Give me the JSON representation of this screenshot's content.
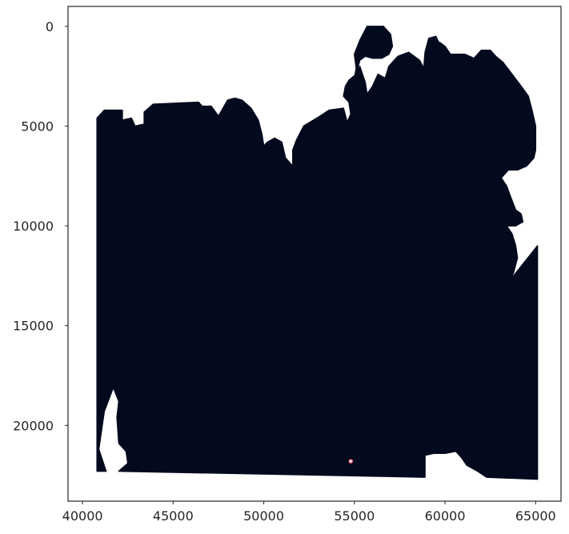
{
  "chart_data": {
    "type": "scatter",
    "title": "",
    "xlabel": "",
    "ylabel": "",
    "xlim": [
      39200,
      66400
    ],
    "ylim": [
      -1000,
      23800
    ],
    "y_inverted": true,
    "grid": false,
    "legend": "none",
    "xticks": [
      {
        "value": 40000,
        "label": "40000"
      },
      {
        "value": 45000,
        "label": "45000"
      },
      {
        "value": 50000,
        "label": "50000"
      },
      {
        "value": 55000,
        "label": "55000"
      },
      {
        "value": 60000,
        "label": "60000"
      },
      {
        "value": 65000,
        "label": "65000"
      }
    ],
    "yticks": [
      {
        "value": 0,
        "label": "0"
      },
      {
        "value": 5000,
        "label": "5000"
      },
      {
        "value": 10000,
        "label": "10000"
      },
      {
        "value": 15000,
        "label": "15000"
      },
      {
        "value": 20000,
        "label": "20000"
      }
    ],
    "series": [
      {
        "kind": "tissue-region",
        "color": "#040a1e",
        "outline": [
          [
            40800,
            22300
          ],
          [
            40800,
            4600
          ],
          [
            41200,
            4200
          ],
          [
            42200,
            4200
          ],
          [
            42200,
            4700
          ],
          [
            42700,
            4600
          ],
          [
            42900,
            5000
          ],
          [
            43400,
            4900
          ],
          [
            43400,
            4300
          ],
          [
            43900,
            3900
          ],
          [
            46400,
            3800
          ],
          [
            46600,
            4000
          ],
          [
            47100,
            4000
          ],
          [
            47500,
            4500
          ],
          [
            48000,
            3700
          ],
          [
            48400,
            3600
          ],
          [
            48800,
            3700
          ],
          [
            49300,
            4100
          ],
          [
            49700,
            4700
          ],
          [
            49900,
            5400
          ],
          [
            50000,
            6000
          ],
          [
            50200,
            5800
          ],
          [
            50600,
            5600
          ],
          [
            51000,
            5800
          ],
          [
            51200,
            6600
          ],
          [
            51600,
            7000
          ],
          [
            51600,
            6200
          ],
          [
            51800,
            5700
          ],
          [
            52200,
            5000
          ],
          [
            53100,
            4500
          ],
          [
            53600,
            4200
          ],
          [
            54400,
            4100
          ],
          [
            54600,
            4800
          ],
          [
            54800,
            4400
          ],
          [
            54700,
            3800
          ],
          [
            54400,
            3500
          ],
          [
            54500,
            3000
          ],
          [
            54700,
            2700
          ],
          [
            55100,
            2400
          ],
          [
            55300,
            2000
          ],
          [
            55600,
            2800
          ],
          [
            55700,
            3400
          ],
          [
            56000,
            3000
          ],
          [
            56300,
            2400
          ],
          [
            56700,
            2600
          ],
          [
            56900,
            2000
          ],
          [
            57400,
            1500
          ],
          [
            58000,
            1300
          ],
          [
            58600,
            1700
          ],
          [
            59000,
            2400
          ],
          [
            59200,
            1800
          ],
          [
            59400,
            900
          ],
          [
            59700,
            800
          ],
          [
            60000,
            1000
          ],
          [
            60300,
            1400
          ],
          [
            60700,
            1400
          ],
          [
            61100,
            1400
          ],
          [
            61600,
            1600
          ],
          [
            62000,
            1200
          ],
          [
            62500,
            1200
          ],
          [
            62800,
            1500
          ],
          [
            63200,
            1800
          ],
          [
            63700,
            2400
          ],
          [
            64200,
            3000
          ],
          [
            64600,
            3500
          ],
          [
            64800,
            4200
          ],
          [
            65000,
            5000
          ],
          [
            65000,
            6200
          ],
          [
            64900,
            6600
          ],
          [
            64500,
            7000
          ],
          [
            64000,
            7200
          ],
          [
            63500,
            7200
          ],
          [
            63100,
            7600
          ],
          [
            63400,
            8000
          ],
          [
            63600,
            8500
          ],
          [
            63900,
            9200
          ],
          [
            64200,
            9400
          ],
          [
            64300,
            9800
          ],
          [
            63900,
            10000
          ],
          [
            63400,
            10000
          ],
          [
            63700,
            10400
          ],
          [
            63900,
            11000
          ],
          [
            64000,
            11600
          ],
          [
            63800,
            12300
          ],
          [
            63400,
            13200
          ],
          [
            63700,
            12600
          ],
          [
            65100,
            11000
          ],
          [
            65100,
            22700
          ],
          [
            62300,
            22600
          ],
          [
            61800,
            22300
          ],
          [
            61200,
            22000
          ],
          [
            60900,
            21600
          ],
          [
            60600,
            21300
          ],
          [
            60000,
            21400
          ],
          [
            59400,
            21400
          ],
          [
            58900,
            21500
          ],
          [
            58900,
            22600
          ],
          [
            42000,
            22300
          ],
          [
            42500,
            21900
          ],
          [
            42400,
            21300
          ],
          [
            42000,
            20900
          ],
          [
            41900,
            19600
          ],
          [
            42000,
            18800
          ],
          [
            41700,
            18100
          ],
          [
            41200,
            19300
          ],
          [
            40900,
            21200
          ],
          [
            41300,
            22300
          ]
        ]
      },
      {
        "kind": "tissue-region",
        "color": "#040a1e",
        "outline": [
          [
            54900,
            3100
          ],
          [
            55100,
            2100
          ],
          [
            55000,
            1400
          ],
          [
            55300,
            700
          ],
          [
            55700,
            0
          ],
          [
            56600,
            0
          ],
          [
            57000,
            400
          ],
          [
            57100,
            1000
          ],
          [
            56900,
            1400
          ],
          [
            56500,
            1600
          ],
          [
            56000,
            1600
          ],
          [
            55600,
            1500
          ],
          [
            55300,
            1700
          ]
        ]
      },
      {
        "kind": "tissue-region",
        "color": "#040a1e",
        "outline": [
          [
            58800,
            2400
          ],
          [
            58900,
            1300
          ],
          [
            59100,
            600
          ],
          [
            59500,
            500
          ],
          [
            59700,
            900
          ],
          [
            59500,
            1700
          ],
          [
            59200,
            2400
          ]
        ]
      },
      {
        "kind": "marker",
        "color": "#ff4d6d",
        "points": [
          {
            "x": 54800,
            "y": 21800
          }
        ]
      }
    ]
  }
}
